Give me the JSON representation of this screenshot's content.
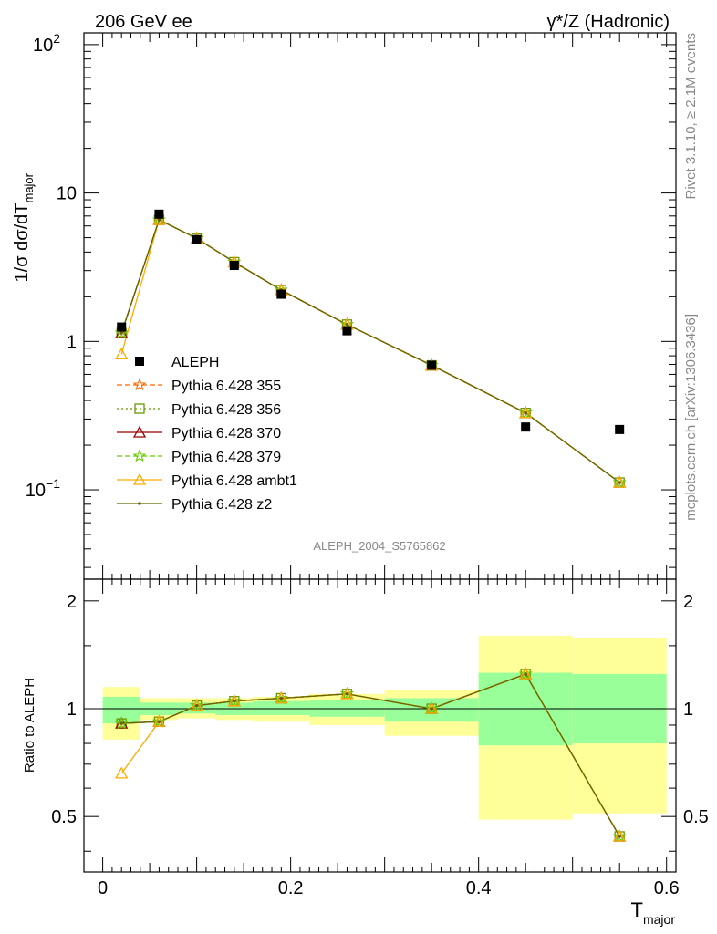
{
  "header": {
    "left_title": "206 GeV ee",
    "right_title": "γ*/Z (Hadronic)"
  },
  "side_labels": {
    "rivet": "Rivet 3.1.10, ≥ 2.1M events",
    "source": "mcplots.cern.ch [arXiv:1306.3436]"
  },
  "analysis_label": "ALEPH_2004_S5765862",
  "colors": {
    "data": "#000000",
    "band_inner": "#99ff99",
    "band_outer": "#ffff99",
    "p355": "#ff6600",
    "p356": "#669900",
    "p370": "#990000",
    "p379": "#66cc00",
    "ambt1": "#ffaa00",
    "z2": "#666600"
  },
  "chart_data": [
    {
      "type": "line",
      "panel": "main",
      "xlabel": "T_major",
      "ylabel": "1/σ dσ/dT_major",
      "xlim": [
        -0.02,
        0.61
      ],
      "ylim": [
        0.025,
        120
      ],
      "log_y": true,
      "y_ticks": [
        {
          "value": 0.1,
          "base": "10",
          "exp": "−1"
        },
        {
          "value": 1,
          "base": "1",
          "exp": ""
        },
        {
          "value": 10,
          "base": "10",
          "exp": ""
        },
        {
          "value": 100,
          "base": "10",
          "exp": "2"
        }
      ],
      "legend_position": "center-left",
      "x": [
        0.02,
        0.06,
        0.1,
        0.14,
        0.19,
        0.26,
        0.35,
        0.45,
        0.55
      ],
      "data": {
        "name": "ALEPH",
        "values": [
          1.25,
          7.2,
          4.85,
          3.25,
          2.08,
          1.18,
          0.69,
          0.265,
          0.255
        ]
      },
      "series": [
        {
          "name": "Pythia 6.428 355",
          "color_key": "p355",
          "marker": "star",
          "dash": "6,3",
          "values": [
            1.14,
            6.6,
            4.95,
            3.42,
            2.22,
            1.3,
            0.69,
            0.33,
            0.112
          ]
        },
        {
          "name": "Pythia 6.428 356",
          "color_key": "p356",
          "marker": "square",
          "dash": "2,3",
          "values": [
            1.14,
            6.6,
            4.95,
            3.42,
            2.22,
            1.3,
            0.69,
            0.33,
            0.112
          ]
        },
        {
          "name": "Pythia 6.428 370",
          "color_key": "p370",
          "marker": "triangle",
          "dash": "",
          "values": [
            1.14,
            6.6,
            4.95,
            3.42,
            2.22,
            1.3,
            0.69,
            0.33,
            0.112
          ]
        },
        {
          "name": "Pythia 6.428 379",
          "color_key": "p379",
          "marker": "star",
          "dash": "6,3",
          "values": [
            1.14,
            6.6,
            4.95,
            3.42,
            2.22,
            1.3,
            0.69,
            0.33,
            0.112
          ]
        },
        {
          "name": "Pythia 6.428 ambt1",
          "color_key": "ambt1",
          "marker": "triangle",
          "dash": "",
          "values": [
            0.82,
            6.6,
            4.95,
            3.42,
            2.22,
            1.3,
            0.69,
            0.33,
            0.112
          ]
        },
        {
          "name": "Pythia 6.428 z2",
          "color_key": "z2",
          "marker": "dot",
          "dash": "",
          "values": [
            1.14,
            6.6,
            4.95,
            3.42,
            2.22,
            1.3,
            0.69,
            0.33,
            0.112
          ]
        }
      ]
    },
    {
      "type": "line",
      "panel": "ratio",
      "xlabel": "T_major",
      "ylabel": "Ratio to ALEPH",
      "xlim": [
        -0.02,
        0.61
      ],
      "ylim": [
        0.35,
        2.3
      ],
      "x_ticks": [
        "0",
        "0.2",
        "0.4",
        "0.6"
      ],
      "y_ticks": [
        "0.5",
        "1",
        "2"
      ],
      "bins": [
        {
          "lo": 0.0,
          "hi": 0.04,
          "inner": [
            0.91,
            1.08
          ],
          "outer": [
            0.82,
            1.15
          ]
        },
        {
          "lo": 0.04,
          "hi": 0.08,
          "inner": [
            0.96,
            1.04
          ],
          "outer": [
            0.93,
            1.07
          ]
        },
        {
          "lo": 0.08,
          "hi": 0.12,
          "inner": [
            0.97,
            1.04
          ],
          "outer": [
            0.94,
            1.07
          ]
        },
        {
          "lo": 0.12,
          "hi": 0.16,
          "inner": [
            0.96,
            1.04
          ],
          "outer": [
            0.93,
            1.07
          ]
        },
        {
          "lo": 0.16,
          "hi": 0.22,
          "inner": [
            0.96,
            1.05
          ],
          "outer": [
            0.92,
            1.08
          ]
        },
        {
          "lo": 0.22,
          "hi": 0.3,
          "inner": [
            0.95,
            1.06
          ],
          "outer": [
            0.9,
            1.1
          ]
        },
        {
          "lo": 0.3,
          "hi": 0.4,
          "inner": [
            0.92,
            1.07
          ],
          "outer": [
            0.84,
            1.13
          ]
        },
        {
          "lo": 0.4,
          "hi": 0.5,
          "inner": [
            0.79,
            1.26
          ],
          "outer": [
            0.49,
            1.6
          ]
        },
        {
          "lo": 0.5,
          "hi": 0.6,
          "inner": [
            0.8,
            1.25
          ],
          "outer": [
            0.51,
            1.58
          ]
        }
      ],
      "series": [
        {
          "name": "Pythia 6.428 355",
          "color_key": "p355",
          "marker": "star",
          "dash": "6,3",
          "values": [
            0.91,
            0.92,
            1.02,
            1.05,
            1.07,
            1.1,
            1.0,
            1.25,
            0.44
          ]
        },
        {
          "name": "Pythia 6.428 356",
          "color_key": "p356",
          "marker": "square",
          "dash": "2,3",
          "values": [
            0.91,
            0.92,
            1.02,
            1.05,
            1.07,
            1.1,
            1.0,
            1.25,
            0.44
          ]
        },
        {
          "name": "Pythia 6.428 370",
          "color_key": "p370",
          "marker": "triangle",
          "dash": "",
          "values": [
            0.91,
            0.92,
            1.02,
            1.05,
            1.07,
            1.1,
            1.0,
            1.25,
            0.44
          ]
        },
        {
          "name": "Pythia 6.428 379",
          "color_key": "p379",
          "marker": "star",
          "dash": "6,3",
          "values": [
            0.91,
            0.92,
            1.02,
            1.05,
            1.07,
            1.1,
            1.0,
            1.25,
            0.44
          ]
        },
        {
          "name": "Pythia 6.428 ambt1",
          "color_key": "ambt1",
          "marker": "triangle",
          "dash": "",
          "values": [
            0.66,
            0.92,
            1.02,
            1.05,
            1.07,
            1.1,
            1.0,
            1.25,
            0.44
          ]
        },
        {
          "name": "Pythia 6.428 z2",
          "color_key": "z2",
          "marker": "dot",
          "dash": "",
          "values": [
            0.91,
            0.92,
            1.02,
            1.05,
            1.07,
            1.1,
            1.0,
            1.25,
            0.44
          ]
        }
      ]
    }
  ]
}
